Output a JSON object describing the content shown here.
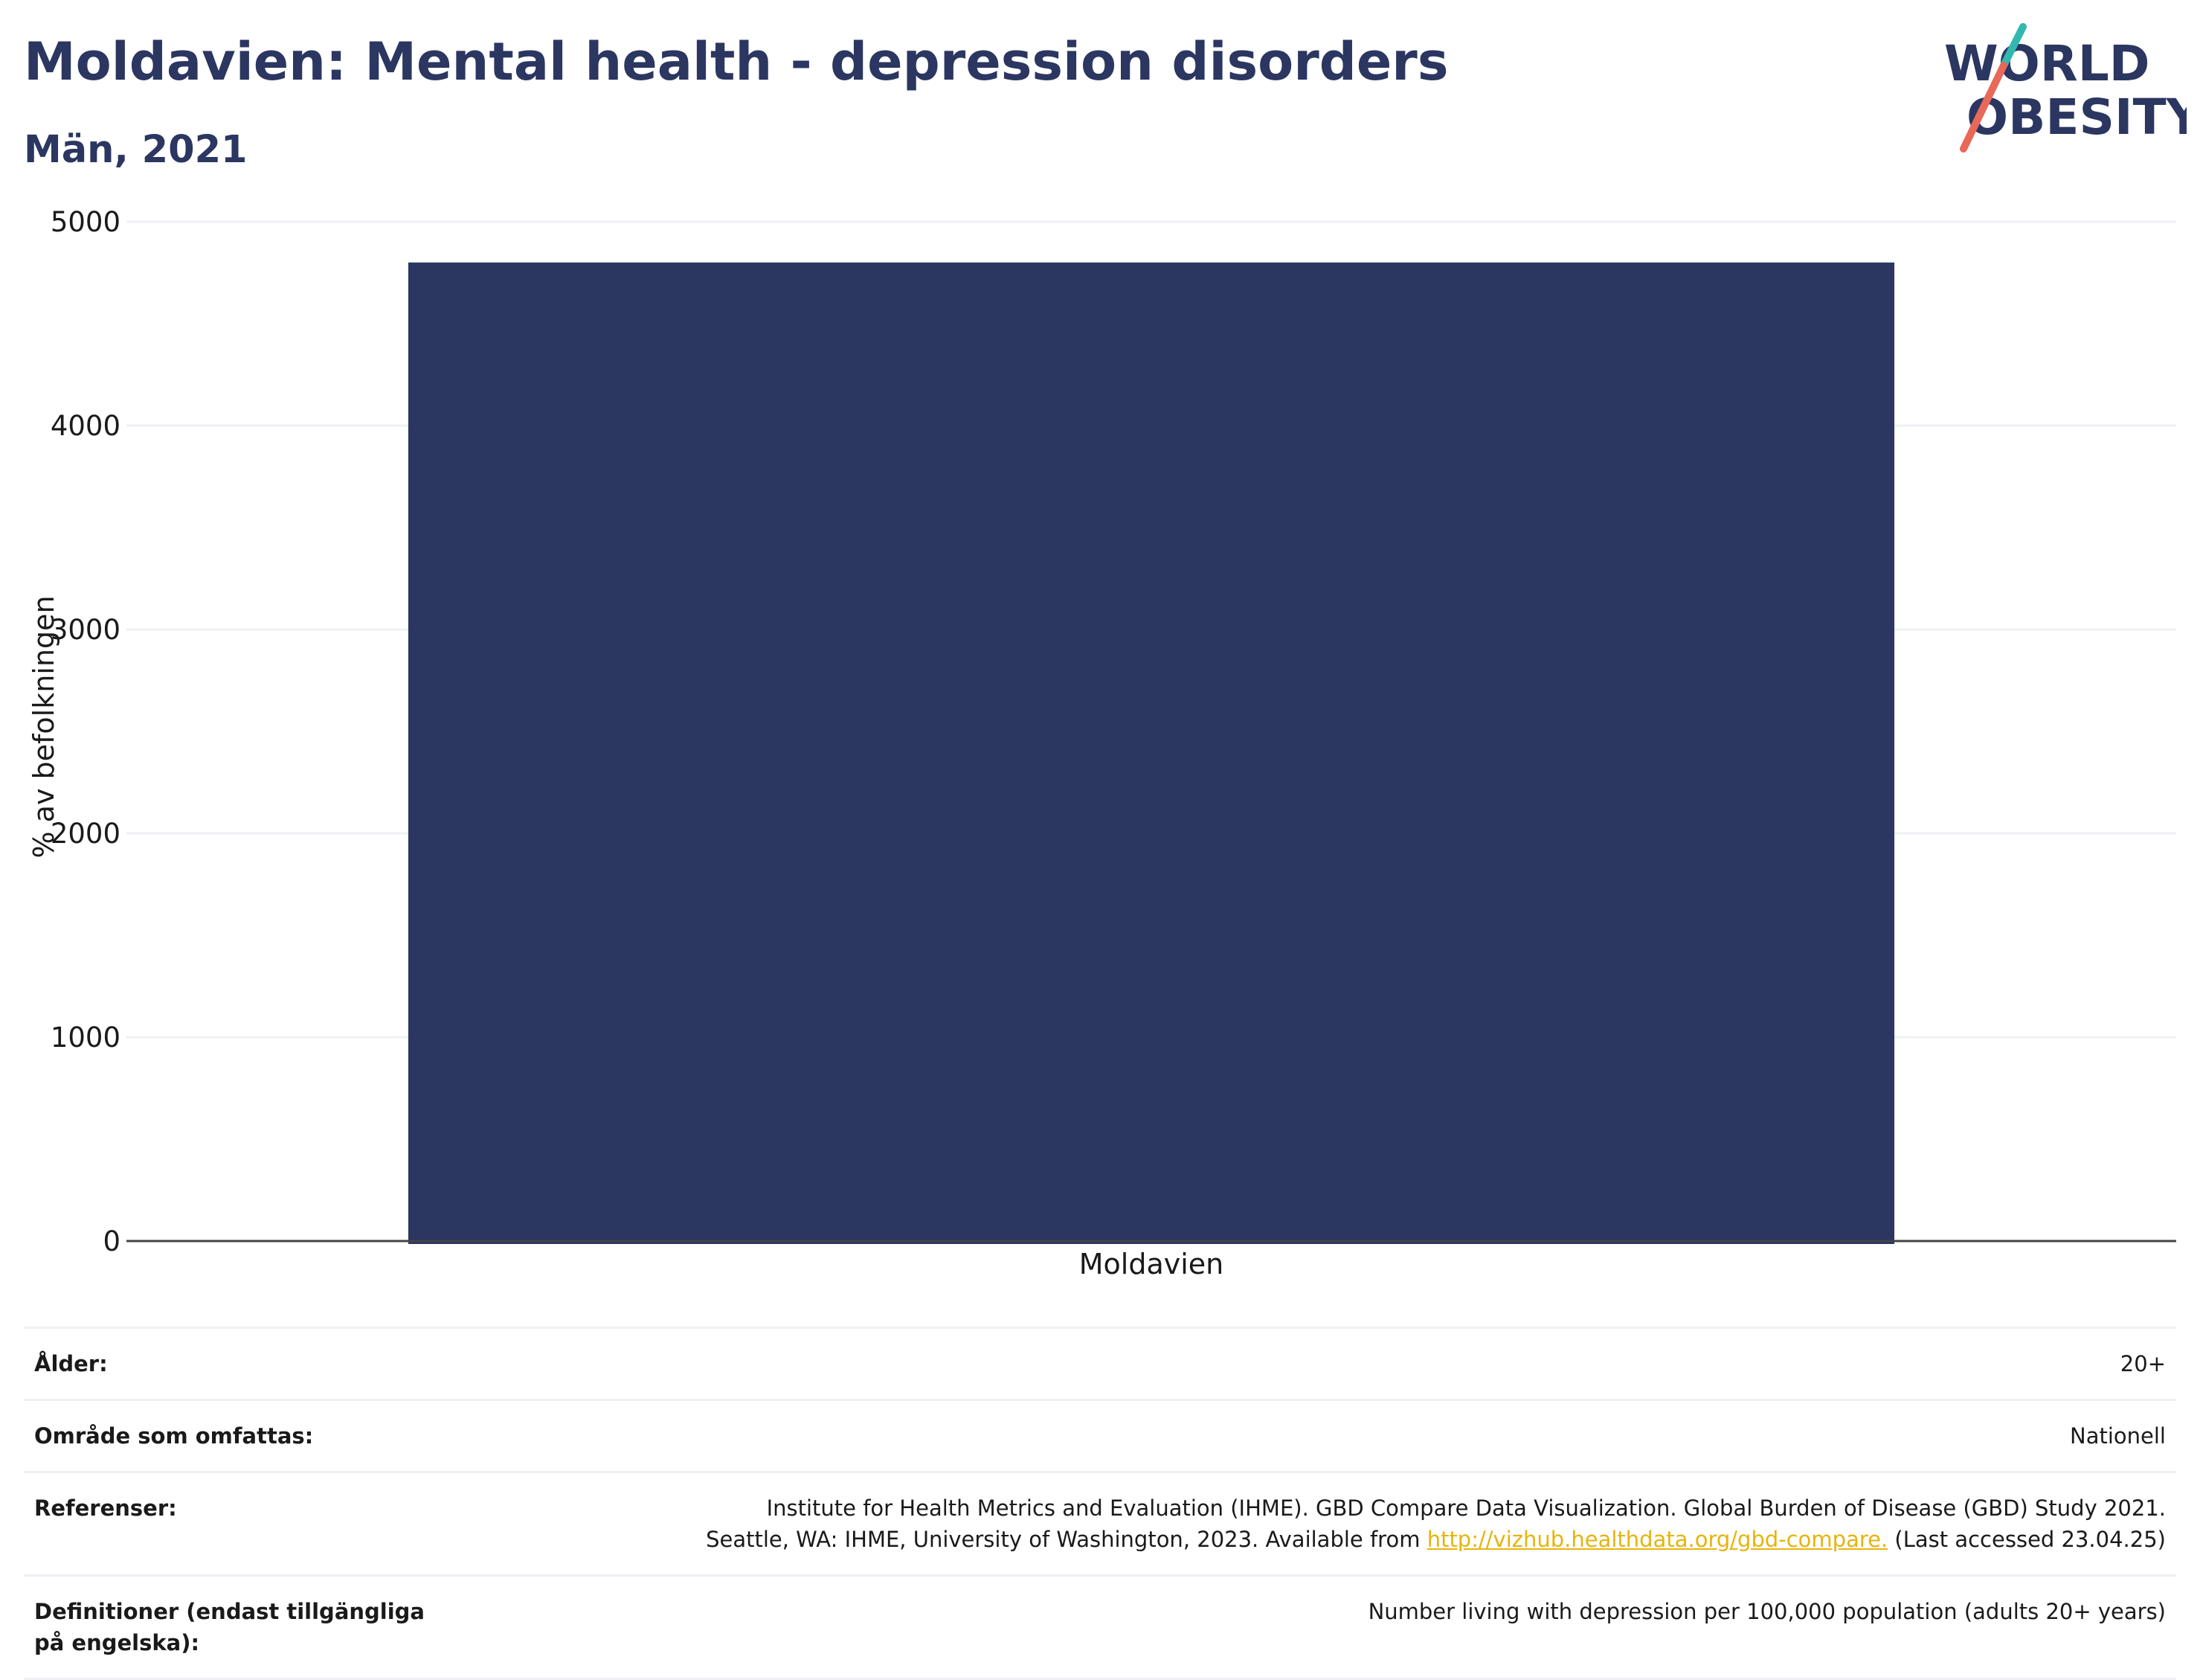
{
  "header": {
    "title": "Moldavien: Mental health - depression disorders",
    "subtitle": "Män, 2021"
  },
  "logo": {
    "line1": "WORLD",
    "line2": "OBESITY",
    "text_color": "#2b3661",
    "accent_teal": "#33b8b0",
    "accent_red": "#e8685a"
  },
  "chart_data": {
    "type": "bar",
    "categories": [
      "Moldavien"
    ],
    "values": [
      4800
    ],
    "ylabel": "% av befolkningen",
    "ylim": [
      0,
      5000
    ],
    "yticks": [
      0,
      1000,
      2000,
      3000,
      4000,
      5000
    ],
    "grid": true,
    "bar_color": "#2b3661"
  },
  "info": [
    {
      "label": "Ålder:",
      "value": "20+"
    },
    {
      "label": "Område som omfattas:",
      "value": "Nationell"
    },
    {
      "label": "Referenser:",
      "value_line1": "Institute for Health Metrics and Evaluation (IHME). GBD Compare Data Visualization. Global Burden of Disease (GBD) Study 2021.",
      "value_line2_pre": "Seattle, WA: IHME, University of Washington, 2023. Available from ",
      "value_link": "http://vizhub.healthdata.org/gbd-compare.",
      "value_line2_post": " (Last accessed 23.04.25)"
    },
    {
      "label": "Definitioner (endast tillgängliga på engelska):",
      "value": "Number living with depression per 100,000 population (adults 20+ years)"
    }
  ],
  "colors": {
    "title": "#2b3661",
    "grid": "#eef0f4",
    "link": "#e7b40c"
  }
}
